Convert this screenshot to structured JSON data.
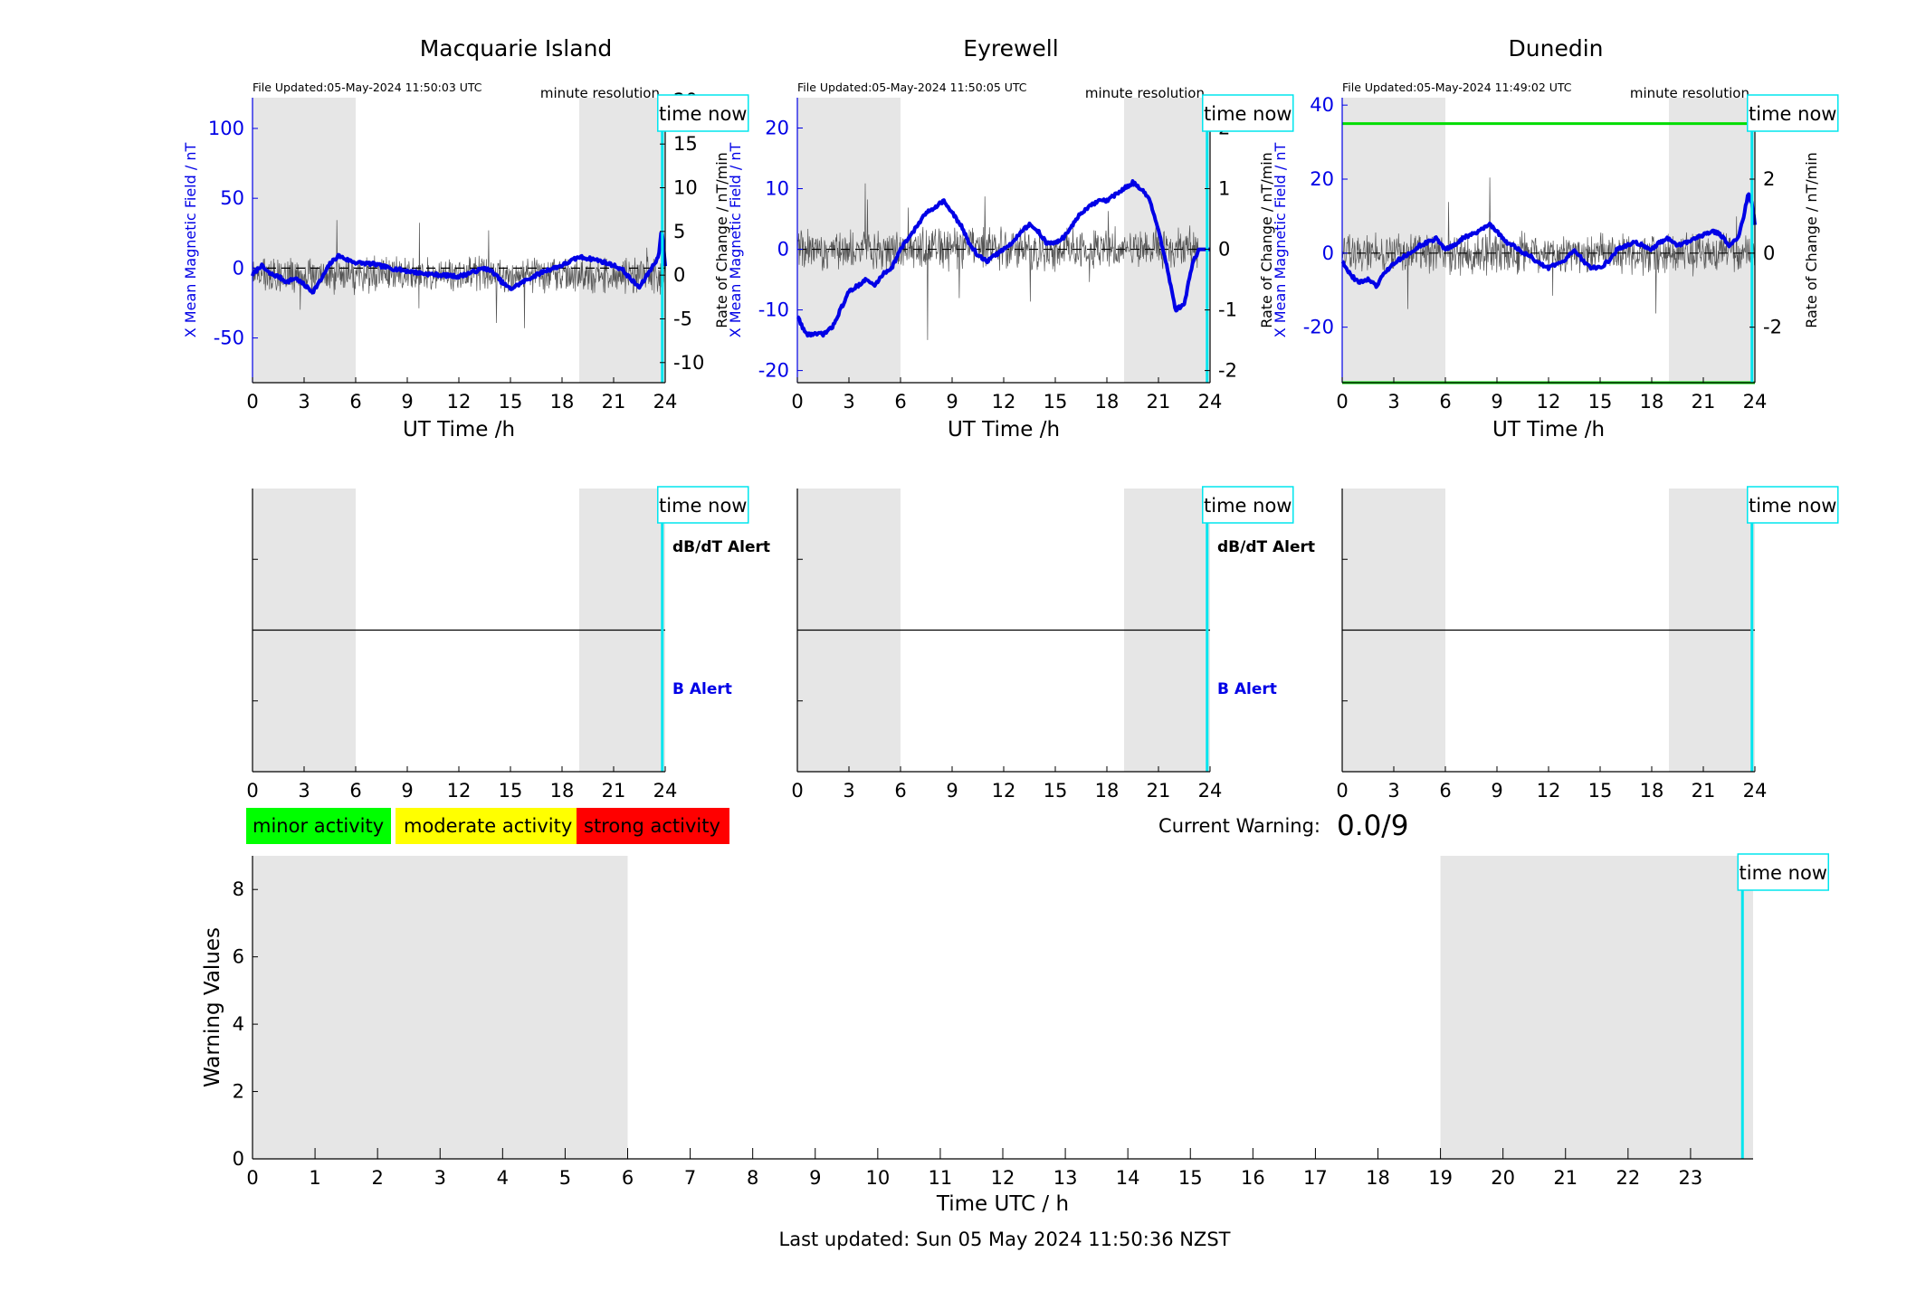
{
  "page": {
    "footer": "Last updated: Sun 05 May 2024 11:50:36 NZST",
    "current_warning_label": "Current Warning:",
    "current_warning_value": "0.0/9"
  },
  "legend_activity": [
    {
      "label": "minor activity",
      "color": "#00ff00"
    },
    {
      "label": "moderate activity",
      "color": "#ffff00"
    },
    {
      "label": "strong activity",
      "color": "#ff0000"
    }
  ],
  "colors": {
    "field_line": "#0000e6",
    "derivative_line": "#555555",
    "night_shade": "#e6e6e6",
    "time_now": "#00e5ee",
    "threshold": "#00dd00",
    "axis": "#000000"
  },
  "common": {
    "time_now_label": "time now",
    "resolution_label": "minute resolution",
    "xlabel": "UT Time /h",
    "x_ticks": [
      0,
      3,
      6,
      9,
      12,
      15,
      18,
      21,
      24
    ],
    "dbdt_alert_label": "dB/dT Alert",
    "b_alert_label": "B Alert",
    "time_now_hour": 23.83,
    "night_shade_hours": [
      [
        0,
        6
      ],
      [
        19,
        24
      ]
    ]
  },
  "chart_data": [
    {
      "type": "line",
      "title": "Macquarie Island",
      "file_updated": "File Updated:05-May-2024 11:50:03 UTC",
      "ylabel": "X Mean Magnetic Field / nT",
      "y2label": "Rate of Change / nT/min",
      "ylim": [
        -82,
        122
      ],
      "y_ticks": [
        -50,
        0,
        50,
        100
      ],
      "y2lim": [
        -12.3,
        20.3
      ],
      "y2_ticks": [
        -10,
        -5,
        0,
        5,
        10,
        15,
        20
      ],
      "deriv_amp": 1.5,
      "x_field": [
        0,
        0.5,
        1,
        1.5,
        2,
        2.5,
        3,
        3.5,
        4,
        4.5,
        5,
        5.5,
        6,
        7,
        8,
        9,
        10,
        11,
        12,
        13,
        13.5,
        14,
        14.5,
        15,
        16,
        17,
        18,
        19,
        20,
        21,
        21.5,
        22,
        22.5,
        23,
        23.3,
        23.6,
        23.8,
        24
      ],
      "series_field": [
        -5,
        2,
        -4,
        -6,
        -10,
        -7,
        -12,
        -17,
        -8,
        3,
        9,
        6,
        4,
        3,
        0,
        -2,
        -4,
        -5,
        -6,
        -2,
        0,
        -3,
        -10,
        -15,
        -8,
        -2,
        2,
        8,
        6,
        2,
        -1,
        -8,
        -14,
        -4,
        2,
        8,
        28,
        2
      ],
      "flat_from_hour": null,
      "threshold": null
    },
    {
      "type": "line",
      "title": "Eyrewell",
      "file_updated": "File Updated:05-May-2024 11:50:05 UTC",
      "ylabel": "X Mean Magnetic Field / nT",
      "y2label": "Rate of Change / nT/min",
      "ylim": [
        -22,
        25
      ],
      "y_ticks": [
        -20,
        -10,
        0,
        10,
        20
      ],
      "y2lim": [
        -2.2,
        2.5
      ],
      "y2_ticks": [
        -2,
        -1,
        0,
        1,
        2
      ],
      "deriv_amp": 0.25,
      "x_field": [
        0,
        0.5,
        1,
        1.5,
        2,
        2.5,
        3,
        3.5,
        4,
        4.5,
        5,
        5.5,
        6,
        6.5,
        7,
        7.5,
        8,
        8.5,
        9,
        9.5,
        10,
        10.5,
        11,
        11.5,
        12,
        12.5,
        13,
        13.5,
        14,
        14.5,
        15,
        15.5,
        16,
        16.5,
        17,
        17.5,
        18,
        18.5,
        19,
        19.5,
        20,
        20.5,
        21,
        21.5,
        22,
        22.5,
        23,
        23.4,
        24
      ],
      "series_field": [
        -11,
        -14,
        -14,
        -14,
        -13,
        -10,
        -7,
        -6,
        -5,
        -6,
        -4,
        -3,
        0,
        2,
        4,
        6,
        7,
        8,
        6,
        4,
        1,
        -1,
        -2,
        -1,
        0,
        1,
        3,
        4,
        3,
        1,
        1,
        2,
        4,
        6,
        7,
        8,
        8,
        9,
        10,
        11,
        10,
        8,
        3,
        -3,
        -10,
        -9,
        -2,
        0,
        0
      ],
      "flat_from_hour": 23.3,
      "threshold": null
    },
    {
      "type": "line",
      "title": "Dunedin",
      "file_updated": "File Updated:05-May-2024 11:49:02 UTC",
      "ylabel": "X Mean Magnetic Field / nT",
      "y2label": "Rate of Change / nT/min",
      "ylim": [
        -35,
        42
      ],
      "y_ticks": [
        -20,
        0,
        20,
        40
      ],
      "y2lim": [
        -3.5,
        4.2
      ],
      "y2_ticks": [
        -2,
        0,
        2,
        4
      ],
      "deriv_amp": 0.4,
      "x_field": [
        0,
        0.5,
        1,
        1.5,
        2,
        2.5,
        3,
        3.5,
        4,
        4.5,
        5,
        5.5,
        6,
        6.5,
        7,
        7.5,
        8,
        8.5,
        9,
        9.5,
        10,
        10.5,
        11,
        11.5,
        12,
        12.5,
        13,
        13.5,
        14,
        14.5,
        15,
        15.5,
        16,
        16.5,
        17,
        17.5,
        18,
        18.5,
        19,
        19.5,
        20,
        20.5,
        21,
        21.5,
        22,
        22.5,
        23,
        23.3,
        23.6,
        23.8,
        24
      ],
      "series_field": [
        -2,
        -6,
        -8,
        -7,
        -9,
        -5,
        -3,
        -1,
        0,
        2,
        3,
        4,
        1,
        2,
        4,
        5,
        6,
        8,
        6,
        3,
        2,
        0,
        -1,
        -3,
        -4,
        -3,
        -2,
        1,
        -2,
        -4,
        -4,
        -2,
        1,
        2,
        3,
        2,
        1,
        3,
        4,
        2,
        3,
        4,
        5,
        6,
        5,
        2,
        4,
        9,
        16,
        14,
        8
      ],
      "flat_from_hour": null,
      "threshold": [
        35,
        -35
      ]
    },
    {
      "type": "line",
      "title": "",
      "xlabel": "Time UTC / h",
      "ylabel": "Warning Values",
      "ylim": [
        0,
        9
      ],
      "y_ticks": [
        0,
        2,
        4,
        6,
        8
      ],
      "xlim": [
        0,
        24
      ],
      "x_ticks": [
        0,
        1,
        2,
        3,
        4,
        5,
        6,
        7,
        8,
        9,
        10,
        11,
        12,
        13,
        14,
        15,
        16,
        17,
        18,
        19,
        20,
        21,
        22,
        23
      ],
      "series": [
        {
          "values": []
        }
      ]
    }
  ]
}
